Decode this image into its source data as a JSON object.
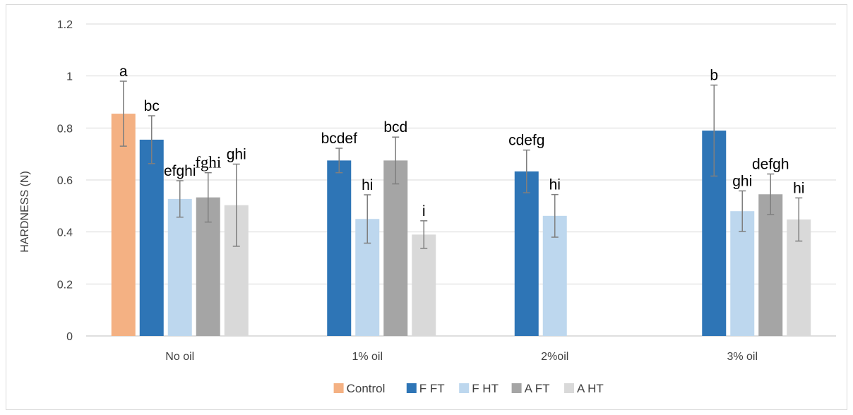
{
  "chart_data": {
    "type": "bar",
    "title": "",
    "xlabel": "",
    "ylabel": "HARDNESS (N)",
    "ylim": [
      0,
      1.2
    ],
    "yticks": [
      "0",
      "0.2",
      "0.4",
      "0.6",
      "0.8",
      "1",
      "1.2"
    ],
    "grid": true,
    "legend_position": "bottom",
    "categories": [
      "No oil",
      "1% oil",
      "2%oil",
      "3% oil"
    ],
    "series": [
      {
        "name": "Control",
        "color": "#f4b183",
        "values": [
          0.855,
          null,
          null,
          null
        ],
        "errors": [
          0.125,
          null,
          null,
          null
        ],
        "labels": [
          "a",
          null,
          null,
          null
        ]
      },
      {
        "name": "F FT",
        "color": "#2e75b6",
        "values": [
          0.755,
          0.675,
          0.633,
          0.79
        ],
        "errors": [
          0.092,
          0.047,
          0.082,
          0.175
        ],
        "labels": [
          "bc",
          "bcdef",
          "cdefg",
          "b"
        ]
      },
      {
        "name": "F HT",
        "color": "#bdd7ee",
        "values": [
          0.527,
          0.45,
          0.462,
          0.48
        ],
        "errors": [
          0.07,
          0.093,
          0.082,
          0.078
        ],
        "labels": [
          "efghi",
          "hi",
          "hi",
          "ghi"
        ]
      },
      {
        "name": "A FT",
        "color": "#a5a5a5",
        "values": [
          0.533,
          0.675,
          null,
          0.545
        ],
        "errors": [
          0.095,
          0.09,
          null,
          0.078
        ],
        "labels": [
          "fghi",
          "bcd",
          null,
          "defgh"
        ]
      },
      {
        "name": "A HT",
        "color": "#d9d9d9",
        "values": [
          0.503,
          0.39,
          null,
          0.448
        ],
        "errors": [
          0.158,
          0.053,
          null,
          0.083
        ],
        "labels": [
          "ghi",
          "i",
          null,
          "hi"
        ]
      }
    ]
  }
}
